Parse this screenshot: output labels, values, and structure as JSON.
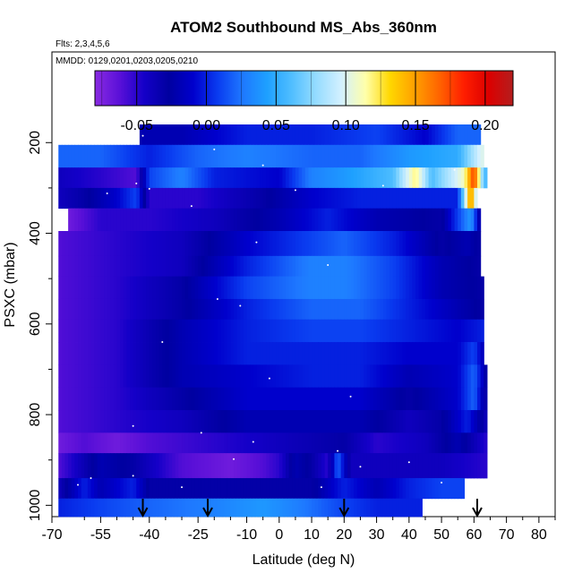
{
  "chart_data": {
    "type": "heatmap",
    "title": "ATOM2 Southbound MS_Abs_360nm",
    "subtitle_flights": "Flts: 2,3,4,5,6",
    "subtitle_dates": "MMDD: 0129,0201,0203,0205,0210",
    "xlabel": "Latitude (deg N)",
    "ylabel": "PSXC (mbar)",
    "xlim": [
      -70,
      85
    ],
    "ylim": [
      1025,
      0
    ],
    "x_major_ticks": [
      -70,
      -55,
      -40,
      -25,
      -10,
      0,
      10,
      20,
      30,
      40,
      50,
      60,
      70,
      80
    ],
    "x_major_tick_labels": [
      "-70",
      "-55",
      "-40",
      "-25",
      "-10",
      "0",
      "10",
      "20",
      "30",
      "40",
      "50",
      "60",
      "70",
      "80"
    ],
    "x_minor_ticks": [
      -60,
      -50,
      -45,
      -35,
      -30,
      -20,
      -15,
      -5,
      5,
      15,
      25,
      35,
      45,
      55,
      65,
      75,
      85
    ],
    "y_ticks": [
      200,
      400,
      600,
      800,
      1000
    ],
    "y_tick_labels": [
      "200",
      "400",
      "600",
      "800",
      "1000"
    ],
    "colorbar": {
      "range": [
        -0.08,
        0.22
      ],
      "ticks": [
        -0.05,
        0.0,
        0.05,
        0.1,
        0.15,
        0.2
      ],
      "tick_labels": [
        "-0.05",
        "0.00",
        "0.05",
        "0.10",
        "0.15",
        "0.20"
      ],
      "colors": [
        "#8a2be2",
        "#5a10d8",
        "#1400c8",
        "#0000a0",
        "#0000cd",
        "#0a3cf0",
        "#1e78ff",
        "#1ea0ff",
        "#50beff",
        "#96dcff",
        "#d2f0ff",
        "#ffffaa",
        "#ffd700",
        "#ffa000",
        "#ff6400",
        "#ff1e00",
        "#dc0000",
        "#b41e1e"
      ]
    },
    "arrows_latitude": [
      -42,
      -22,
      20,
      61
    ],
    "pressure_bands_mbar": [
      [
        160,
        205
      ],
      [
        205,
        255
      ],
      [
        255,
        300
      ],
      [
        300,
        345
      ],
      [
        345,
        395
      ],
      [
        395,
        450
      ],
      [
        450,
        495
      ],
      [
        495,
        545
      ],
      [
        545,
        590
      ],
      [
        590,
        640
      ],
      [
        640,
        690
      ],
      [
        690,
        740
      ],
      [
        740,
        790
      ],
      [
        790,
        840
      ],
      [
        840,
        885
      ],
      [
        885,
        940
      ],
      [
        940,
        985
      ],
      [
        985,
        1025
      ]
    ],
    "band_lat_ranges": [
      [
        -43,
        62
      ],
      [
        -68,
        63
      ],
      [
        -68,
        64
      ],
      [
        -68,
        61
      ],
      [
        -65,
        62
      ],
      [
        -68,
        62
      ],
      [
        -68,
        62
      ],
      [
        -68,
        63
      ],
      [
        -68,
        63
      ],
      [
        -68,
        63
      ],
      [
        -68,
        63
      ],
      [
        -68,
        64
      ],
      [
        -68,
        64
      ],
      [
        -68,
        64
      ],
      [
        -68,
        64
      ],
      [
        -68,
        64
      ],
      [
        -68,
        57
      ],
      [
        -68,
        44
      ]
    ],
    "profile_points": [
      [
        [
          -43,
          -0.02
        ],
        [
          -30,
          -0.02
        ],
        [
          -10,
          0.0
        ],
        [
          10,
          0.0
        ],
        [
          30,
          0.01
        ],
        [
          45,
          -0.01
        ],
        [
          55,
          0.02
        ],
        [
          62,
          0.02
        ]
      ],
      [
        [
          -68,
          0.02
        ],
        [
          -55,
          0.02
        ],
        [
          -40,
          0.0
        ],
        [
          -25,
          0.02
        ],
        [
          -10,
          0.03
        ],
        [
          10,
          0.02
        ],
        [
          25,
          0.02
        ],
        [
          40,
          0.04
        ],
        [
          55,
          0.05
        ],
        [
          62,
          0.1
        ]
      ],
      [
        [
          -68,
          -0.04
        ],
        [
          -55,
          -0.05
        ],
        [
          -44,
          -0.06
        ],
        [
          -40,
          0.01
        ],
        [
          -30,
          0.03
        ],
        [
          -20,
          0.0
        ],
        [
          0,
          -0.01
        ],
        [
          10,
          0.03
        ],
        [
          20,
          0.04
        ],
        [
          35,
          0.06
        ],
        [
          42,
          0.12
        ],
        [
          47,
          0.06
        ],
        [
          57,
          0.11
        ],
        [
          60,
          0.18
        ],
        [
          63,
          0.06
        ]
      ],
      [
        [
          -68,
          -0.04
        ],
        [
          -60,
          -0.03
        ],
        [
          -50,
          -0.01
        ],
        [
          -44,
          0.01
        ],
        [
          -40,
          -0.05
        ],
        [
          -25,
          -0.05
        ],
        [
          -5,
          -0.03
        ],
        [
          10,
          -0.01
        ],
        [
          25,
          0.0
        ],
        [
          40,
          0.0
        ],
        [
          55,
          0.0
        ],
        [
          59,
          0.16
        ],
        [
          61,
          0.08
        ]
      ],
      [
        [
          -65,
          -0.07
        ],
        [
          -55,
          -0.05
        ],
        [
          -40,
          -0.05
        ],
        [
          -20,
          -0.04
        ],
        [
          0,
          -0.02
        ],
        [
          15,
          0.0
        ],
        [
          30,
          -0.02
        ],
        [
          50,
          -0.03
        ],
        [
          59,
          0.04
        ],
        [
          62,
          -0.03
        ]
      ],
      [
        [
          -68,
          -0.06
        ],
        [
          -50,
          -0.05
        ],
        [
          -30,
          -0.04
        ],
        [
          -10,
          -0.01
        ],
        [
          10,
          0.01
        ],
        [
          20,
          0.02
        ],
        [
          35,
          0.0
        ],
        [
          50,
          -0.03
        ],
        [
          58,
          -0.02
        ],
        [
          62,
          -0.03
        ]
      ],
      [
        [
          -68,
          -0.06
        ],
        [
          -50,
          -0.05
        ],
        [
          -30,
          -0.04
        ],
        [
          -10,
          0.0
        ],
        [
          10,
          0.03
        ],
        [
          20,
          0.03
        ],
        [
          35,
          0.01
        ],
        [
          50,
          -0.02
        ],
        [
          62,
          -0.03
        ]
      ],
      [
        [
          -68,
          -0.06
        ],
        [
          -50,
          -0.05
        ],
        [
          -30,
          -0.03
        ],
        [
          -10,
          0.01
        ],
        [
          10,
          0.03
        ],
        [
          20,
          0.03
        ],
        [
          35,
          0.01
        ],
        [
          50,
          -0.02
        ],
        [
          63,
          -0.03
        ]
      ],
      [
        [
          -68,
          -0.06
        ],
        [
          -50,
          -0.05
        ],
        [
          -30,
          -0.03
        ],
        [
          -10,
          0.0
        ],
        [
          10,
          0.02
        ],
        [
          25,
          0.02
        ],
        [
          40,
          0.0
        ],
        [
          55,
          -0.02
        ],
        [
          63,
          -0.03
        ]
      ],
      [
        [
          -68,
          -0.06
        ],
        [
          -50,
          -0.05
        ],
        [
          -30,
          -0.02
        ],
        [
          -10,
          0.0
        ],
        [
          10,
          0.01
        ],
        [
          25,
          0.01
        ],
        [
          40,
          0.0
        ],
        [
          55,
          -0.01
        ],
        [
          63,
          0.0
        ]
      ],
      [
        [
          -68,
          -0.06
        ],
        [
          -50,
          -0.05
        ],
        [
          -30,
          -0.02
        ],
        [
          -10,
          0.0
        ],
        [
          10,
          0.0
        ],
        [
          25,
          0.0
        ],
        [
          40,
          -0.01
        ],
        [
          55,
          -0.01
        ],
        [
          60,
          0.01
        ],
        [
          63,
          -0.02
        ]
      ],
      [
        [
          -68,
          -0.06
        ],
        [
          -50,
          -0.05
        ],
        [
          -30,
          -0.02
        ],
        [
          -10,
          -0.01
        ],
        [
          10,
          0.0
        ],
        [
          25,
          0.0
        ],
        [
          40,
          -0.02
        ],
        [
          55,
          -0.01
        ],
        [
          60,
          0.02
        ],
        [
          64,
          -0.03
        ]
      ],
      [
        [
          -68,
          -0.06
        ],
        [
          -50,
          -0.05
        ],
        [
          -30,
          -0.03
        ],
        [
          -10,
          -0.01
        ],
        [
          10,
          -0.01
        ],
        [
          25,
          -0.01
        ],
        [
          40,
          -0.03
        ],
        [
          55,
          -0.01
        ],
        [
          60,
          0.02
        ],
        [
          64,
          -0.04
        ]
      ],
      [
        [
          -68,
          -0.06
        ],
        [
          -50,
          -0.05
        ],
        [
          -30,
          -0.04
        ],
        [
          -10,
          -0.02
        ],
        [
          10,
          -0.02
        ],
        [
          25,
          -0.02
        ],
        [
          40,
          -0.04
        ],
        [
          50,
          -0.03
        ],
        [
          58,
          0.0
        ],
        [
          64,
          -0.04
        ]
      ],
      [
        [
          -68,
          -0.07
        ],
        [
          -60,
          -0.06
        ],
        [
          -50,
          -0.07
        ],
        [
          -40,
          -0.06
        ],
        [
          -20,
          -0.05
        ],
        [
          0,
          -0.04
        ],
        [
          20,
          -0.03
        ],
        [
          30,
          -0.05
        ],
        [
          45,
          -0.04
        ],
        [
          55,
          -0.02
        ],
        [
          64,
          -0.05
        ]
      ],
      [
        [
          -68,
          -0.06
        ],
        [
          -55,
          -0.02
        ],
        [
          -45,
          -0.03
        ],
        [
          -30,
          -0.06
        ],
        [
          -15,
          -0.07
        ],
        [
          -5,
          -0.06
        ],
        [
          0,
          -0.05
        ],
        [
          5,
          -0.02
        ],
        [
          10,
          -0.03
        ],
        [
          15,
          -0.05
        ],
        [
          18,
          0.02
        ],
        [
          22,
          -0.04
        ],
        [
          35,
          -0.04
        ],
        [
          50,
          -0.04
        ],
        [
          64,
          -0.05
        ]
      ],
      [
        [
          -68,
          -0.04
        ],
        [
          -60,
          0.0
        ],
        [
          -55,
          -0.02
        ],
        [
          -45,
          0.0
        ],
        [
          -40,
          -0.03
        ],
        [
          -30,
          -0.03
        ],
        [
          -10,
          -0.03
        ],
        [
          10,
          -0.03
        ],
        [
          20,
          0.0
        ],
        [
          30,
          -0.02
        ],
        [
          40,
          0.0
        ],
        [
          50,
          0.01
        ],
        [
          57,
          0.01
        ]
      ],
      [
        [
          -68,
          0.0
        ],
        [
          -55,
          0.01
        ],
        [
          -40,
          0.02
        ],
        [
          -20,
          0.03
        ],
        [
          -5,
          0.04
        ],
        [
          5,
          0.03
        ],
        [
          20,
          0.01
        ],
        [
          30,
          0.0
        ],
        [
          44,
          0.0
        ]
      ]
    ]
  }
}
